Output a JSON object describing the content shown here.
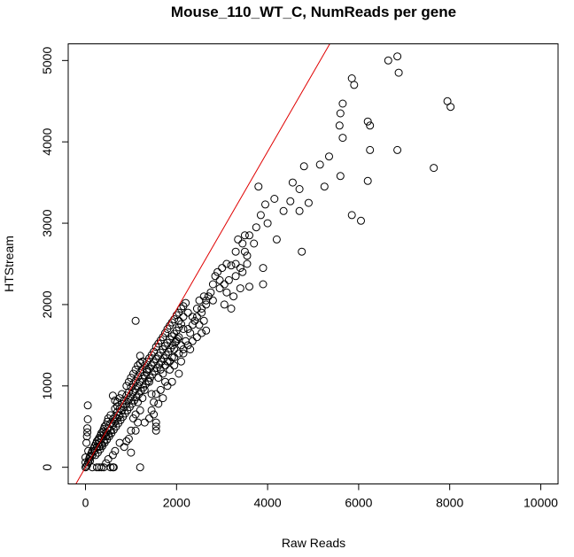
{
  "chart_data": {
    "type": "scatter",
    "title": "Mouse_110_WT_C, NumReads per gene",
    "xlabel": "Raw Reads",
    "ylabel": "HTStream",
    "xlim": [
      -380,
      10380
    ],
    "ylim": [
      -205,
      5205
    ],
    "xticks": [
      0,
      2000,
      4000,
      6000,
      8000,
      10000
    ],
    "yticks": [
      0,
      1000,
      2000,
      3000,
      4000,
      5000
    ],
    "xtick_labels": [
      "0",
      "2000",
      "4000",
      "6000",
      "8000",
      "10000"
    ],
    "ytick_labels": [
      "0",
      "1000",
      "2000",
      "3000",
      "4000",
      "5000"
    ],
    "grid": false,
    "reference_line": {
      "intercept": 0,
      "slope": 0.97,
      "color": "#e00000"
    },
    "point_color": "#000000",
    "line_color": "#e00000",
    "points": [
      [
        6850,
        5050
      ],
      [
        6650,
        5000
      ],
      [
        6880,
        4850
      ],
      [
        5850,
        4780
      ],
      [
        5900,
        4700
      ],
      [
        7950,
        4500
      ],
      [
        8020,
        4430
      ],
      [
        5650,
        4470
      ],
      [
        5600,
        4350
      ],
      [
        5580,
        4200
      ],
      [
        5650,
        4050
      ],
      [
        6200,
        4250
      ],
      [
        6250,
        4200
      ],
      [
        6250,
        3900
      ],
      [
        6850,
        3900
      ],
      [
        7650,
        3680
      ],
      [
        5350,
        3820
      ],
      [
        5150,
        3720
      ],
      [
        4800,
        3700
      ],
      [
        5600,
        3580
      ],
      [
        4550,
        3500
      ],
      [
        4700,
        3420
      ],
      [
        5250,
        3450
      ],
      [
        6200,
        3520
      ],
      [
        3800,
        3450
      ],
      [
        4150,
        3300
      ],
      [
        3950,
        3230
      ],
      [
        4500,
        3270
      ],
      [
        4350,
        3150
      ],
      [
        4700,
        3150
      ],
      [
        4900,
        3250
      ],
      [
        3850,
        3100
      ],
      [
        4000,
        3000
      ],
      [
        3750,
        2950
      ],
      [
        5850,
        3100
      ],
      [
        6050,
        3030
      ],
      [
        3500,
        2850
      ],
      [
        3600,
        2850
      ],
      [
        3350,
        2800
      ],
      [
        3450,
        2750
      ],
      [
        3700,
        2750
      ],
      [
        4200,
        2800
      ],
      [
        3300,
        2650
      ],
      [
        3500,
        2650
      ],
      [
        3550,
        2600
      ],
      [
        4750,
        2650
      ],
      [
        3300,
        2500
      ],
      [
        3550,
        2500
      ],
      [
        3400,
        2450
      ],
      [
        3100,
        2500
      ],
      [
        3200,
        2480
      ],
      [
        3450,
        2400
      ],
      [
        3900,
        2450
      ],
      [
        3000,
        2450
      ],
      [
        2900,
        2400
      ],
      [
        3300,
        2350
      ],
      [
        2950,
        2300
      ],
      [
        3150,
        2300
      ],
      [
        2850,
        2350
      ],
      [
        3050,
        2250
      ],
      [
        2800,
        2250
      ],
      [
        2950,
        2200
      ],
      [
        3100,
        2150
      ],
      [
        3400,
        2200
      ],
      [
        3600,
        2220
      ],
      [
        3250,
        2100
      ],
      [
        3900,
        2250
      ],
      [
        3050,
        2000
      ],
      [
        3200,
        1950
      ],
      [
        2650,
        1680
      ],
      [
        2800,
        2050
      ],
      [
        2750,
        2150
      ],
      [
        2600,
        2100
      ],
      [
        2500,
        2050
      ],
      [
        2650,
        2000
      ],
      [
        2450,
        1950
      ],
      [
        2550,
        1900
      ],
      [
        2350,
        1850
      ],
      [
        2400,
        1800
      ],
      [
        2250,
        1700
      ],
      [
        2300,
        1650
      ],
      [
        2500,
        1750
      ],
      [
        2600,
        1800
      ],
      [
        2150,
        1700
      ],
      [
        2050,
        1600
      ],
      [
        2200,
        1550
      ],
      [
        2100,
        1500
      ],
      [
        2000,
        1550
      ],
      [
        1950,
        1450
      ],
      [
        2150,
        1400
      ],
      [
        2300,
        1450
      ],
      [
        1900,
        1350
      ],
      [
        1800,
        1300
      ],
      [
        1950,
        1250
      ],
      [
        2100,
        1300
      ],
      [
        1850,
        1200
      ],
      [
        2050,
        1150
      ],
      [
        1700,
        1150
      ],
      [
        1600,
        1100
      ],
      [
        1750,
        1050
      ],
      [
        1900,
        1050
      ],
      [
        1650,
        950
      ],
      [
        1800,
        1000
      ],
      [
        1550,
        900
      ],
      [
        1700,
        850
      ],
      [
        1500,
        800
      ],
      [
        1600,
        780
      ],
      [
        1450,
        700
      ],
      [
        1500,
        650
      ],
      [
        1550,
        550
      ],
      [
        1550,
        500
      ],
      [
        1550,
        450
      ],
      [
        1250,
        1300
      ],
      [
        1200,
        1370
      ],
      [
        1100,
        1800
      ],
      [
        1350,
        1200
      ],
      [
        1400,
        1050
      ],
      [
        1300,
        950
      ],
      [
        1250,
        850
      ],
      [
        1150,
        800
      ],
      [
        1200,
        700
      ],
      [
        1100,
        650
      ],
      [
        1050,
        600
      ],
      [
        1150,
        550
      ],
      [
        1000,
        450
      ],
      [
        950,
        350
      ],
      [
        1200,
        0
      ],
      [
        1000,
        180
      ],
      [
        850,
        250
      ],
      [
        900,
        320
      ],
      [
        750,
        300
      ],
      [
        650,
        200
      ],
      [
        600,
        150
      ],
      [
        500,
        100
      ],
      [
        450,
        50
      ],
      [
        300,
        0
      ],
      [
        250,
        0
      ],
      [
        150,
        0
      ],
      [
        600,
        0
      ],
      [
        550,
        0
      ],
      [
        350,
        0
      ],
      [
        400,
        0
      ],
      [
        620,
        0
      ],
      [
        50,
        760
      ],
      [
        50,
        590
      ],
      [
        40,
        480
      ],
      [
        40,
        430
      ],
      [
        30,
        380
      ],
      [
        20,
        300
      ],
      [
        60,
        200
      ],
      [
        0,
        120
      ],
      [
        0,
        60
      ],
      [
        0,
        0
      ],
      [
        100,
        80
      ],
      [
        150,
        150
      ],
      [
        200,
        200
      ],
      [
        250,
        250
      ],
      [
        300,
        300
      ],
      [
        350,
        350
      ],
      [
        400,
        400
      ],
      [
        450,
        430
      ],
      [
        500,
        480
      ],
      [
        550,
        540
      ],
      [
        600,
        590
      ],
      [
        650,
        620
      ],
      [
        700,
        680
      ],
      [
        750,
        720
      ],
      [
        800,
        780
      ],
      [
        850,
        820
      ],
      [
        900,
        880
      ],
      [
        950,
        920
      ],
      [
        1000,
        980
      ],
      [
        1050,
        1020
      ],
      [
        1100,
        1060
      ],
      [
        1150,
        1110
      ],
      [
        1200,
        1160
      ],
      [
        1250,
        1200
      ],
      [
        1300,
        1250
      ],
      [
        1350,
        1300
      ],
      [
        1400,
        1340
      ],
      [
        1450,
        1380
      ],
      [
        1500,
        1420
      ],
      [
        1550,
        1480
      ],
      [
        1600,
        1520
      ],
      [
        1650,
        1560
      ],
      [
        1700,
        1600
      ],
      [
        1750,
        1650
      ],
      [
        1800,
        1700
      ],
      [
        1850,
        1740
      ],
      [
        1900,
        1780
      ],
      [
        1950,
        1820
      ],
      [
        2000,
        1870
      ],
      [
        2050,
        1900
      ],
      [
        2100,
        1950
      ],
      [
        2150,
        1980
      ],
      [
        2200,
        2020
      ],
      [
        300,
        250
      ],
      [
        350,
        280
      ],
      [
        400,
        320
      ],
      [
        450,
        380
      ],
      [
        500,
        400
      ],
      [
        550,
        450
      ],
      [
        600,
        520
      ],
      [
        650,
        560
      ],
      [
        700,
        600
      ],
      [
        750,
        640
      ],
      [
        800,
        700
      ],
      [
        850,
        740
      ],
      [
        900,
        780
      ],
      [
        950,
        830
      ],
      [
        1000,
        870
      ],
      [
        1050,
        920
      ],
      [
        1100,
        960
      ],
      [
        1150,
        1000
      ],
      [
        1200,
        1050
      ],
      [
        1250,
        1090
      ],
      [
        1300,
        1130
      ],
      [
        1350,
        1170
      ],
      [
        1400,
        1210
      ],
      [
        1450,
        1250
      ],
      [
        1500,
        1290
      ],
      [
        1550,
        1330
      ],
      [
        1600,
        1370
      ],
      [
        1650,
        1410
      ],
      [
        1700,
        1450
      ],
      [
        1750,
        1490
      ],
      [
        1800,
        1530
      ],
      [
        1850,
        1570
      ],
      [
        1900,
        1610
      ],
      [
        1950,
        1640
      ],
      [
        2000,
        1680
      ],
      [
        2050,
        1720
      ],
      [
        2100,
        1760
      ],
      [
        600,
        880
      ],
      [
        650,
        820
      ],
      [
        700,
        750
      ],
      [
        500,
        600
      ],
      [
        450,
        520
      ],
      [
        400,
        470
      ],
      [
        350,
        420
      ],
      [
        300,
        360
      ],
      [
        250,
        320
      ],
      [
        200,
        260
      ],
      [
        150,
        200
      ],
      [
        100,
        140
      ],
      [
        80,
        100
      ],
      [
        60,
        60
      ],
      [
        40,
        30
      ],
      [
        20,
        10
      ],
      [
        220,
        150
      ],
      [
        270,
        180
      ],
      [
        320,
        220
      ],
      [
        370,
        260
      ],
      [
        420,
        300
      ],
      [
        470,
        340
      ],
      [
        520,
        380
      ],
      [
        570,
        420
      ],
      [
        620,
        460
      ],
      [
        670,
        500
      ],
      [
        720,
        540
      ],
      [
        770,
        580
      ],
      [
        820,
        620
      ],
      [
        870,
        660
      ],
      [
        920,
        700
      ],
      [
        970,
        740
      ],
      [
        1020,
        780
      ],
      [
        1070,
        820
      ],
      [
        1120,
        860
      ],
      [
        1170,
        900
      ],
      [
        1220,
        940
      ],
      [
        1270,
        980
      ],
      [
        1320,
        1020
      ],
      [
        1370,
        1060
      ],
      [
        1420,
        1100
      ],
      [
        1470,
        1140
      ],
      [
        1520,
        1180
      ],
      [
        1570,
        1220
      ],
      [
        1620,
        1260
      ],
      [
        1670,
        1300
      ],
      [
        1720,
        1340
      ],
      [
        1770,
        1380
      ],
      [
        1820,
        1420
      ],
      [
        1870,
        1460
      ],
      [
        1920,
        1500
      ],
      [
        1970,
        1540
      ],
      [
        2020,
        1580
      ],
      [
        900,
        1000
      ],
      [
        950,
        1050
      ],
      [
        1000,
        1100
      ],
      [
        1050,
        1150
      ],
      [
        1100,
        1200
      ],
      [
        1150,
        1250
      ],
      [
        1200,
        1280
      ],
      [
        800,
        900
      ],
      [
        750,
        850
      ],
      [
        700,
        800
      ],
      [
        650,
        720
      ],
      [
        550,
        640
      ],
      [
        480,
        560
      ],
      [
        420,
        500
      ],
      [
        380,
        440
      ],
      [
        330,
        390
      ],
      [
        280,
        340
      ],
      [
        230,
        290
      ],
      [
        180,
        230
      ],
      [
        130,
        170
      ],
      [
        90,
        120
      ],
      [
        1100,
        450
      ],
      [
        1300,
        550
      ],
      [
        1400,
        600
      ],
      [
        1450,
        900
      ],
      [
        1650,
        1200
      ],
      [
        1750,
        1250
      ],
      [
        1850,
        1300
      ],
      [
        1950,
        1350
      ],
      [
        2050,
        1400
      ],
      [
        2150,
        1450
      ],
      [
        2250,
        1500
      ],
      [
        2350,
        1550
      ],
      [
        2450,
        1600
      ],
      [
        2550,
        1650
      ],
      [
        2350,
        1750
      ],
      [
        2450,
        1850
      ],
      [
        2550,
        1950
      ],
      [
        2650,
        2050
      ],
      [
        2700,
        2100
      ],
      [
        2250,
        1900
      ],
      [
        2150,
        1850
      ],
      [
        2050,
        1800
      ]
    ]
  }
}
